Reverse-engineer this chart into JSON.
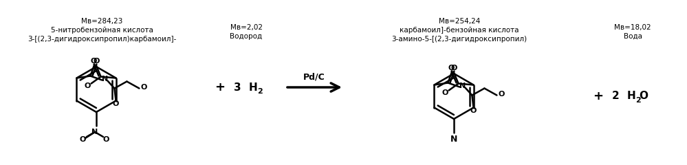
{
  "bg_color": "#ffffff",
  "text_color": "#000000",
  "label1_line1": "3-[(2,3-дигидроксипропил)карбамоил]-",
  "label1_line2": "5-нитробензойная кислота",
  "label1_line3": "Мв=284,23",
  "label2_line1": "Водород",
  "label2_line2": "Мв=2,02",
  "label3_line1": "3-амино-5-[(2,3-дигидроксипропил)",
  "label3_line2": "карбамоил]-бензойная кислота",
  "label3_line3": "Мв=254,24",
  "label4_line1": "Вода",
  "label4_line2": "Мв=18,02",
  "catalyst": "Pd/C",
  "font_size_labels": 7.5,
  "font_size_formula": 9
}
